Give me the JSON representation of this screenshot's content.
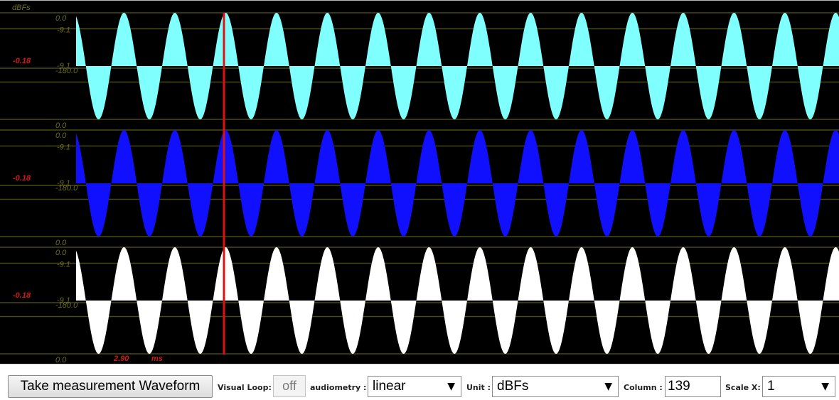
{
  "scope": {
    "unit_label": "dBFs",
    "cursor_time": "2.90",
    "cursor_time_unit": "ms",
    "background": "#000000",
    "grid_color": "#4a4a12",
    "label_color": "#6b6b20",
    "cursor_color": "#e01010",
    "channels": [
      {
        "color": "#80ffff",
        "top_label": "0.0",
        "upper_mid_label": "-9.1",
        "center_label": "-180.0",
        "lower_mid_label": "-9.1",
        "bottom_label": "0.0",
        "cursor_level": "-0.18"
      },
      {
        "color": "#1010ff",
        "top_label": "0.0",
        "upper_mid_label": "-9.1",
        "center_label": "-180.0",
        "lower_mid_label": "-9.1",
        "bottom_label": "0.0",
        "cursor_level": "-0.18"
      },
      {
        "color": "#ffffff",
        "top_label": "0.0",
        "upper_mid_label": "-9.1",
        "center_label": "-180.0",
        "lower_mid_label": "-9.1",
        "bottom_label": "0.0",
        "cursor_level": "-0.18"
      }
    ]
  },
  "toolbar": {
    "measure_button": "Take measurement Waveform",
    "visual_loop_label": "Visual Loop:",
    "visual_loop_value": "off",
    "audiometry_label": "audiometry :",
    "audiometry_value": "linear",
    "unit_label": "Unit :",
    "unit_value": "dBFs",
    "column_label": "Column :",
    "column_value": "139",
    "scale_x_label": "Scale X:",
    "scale_x_value": "1",
    "caret": "▼"
  }
}
